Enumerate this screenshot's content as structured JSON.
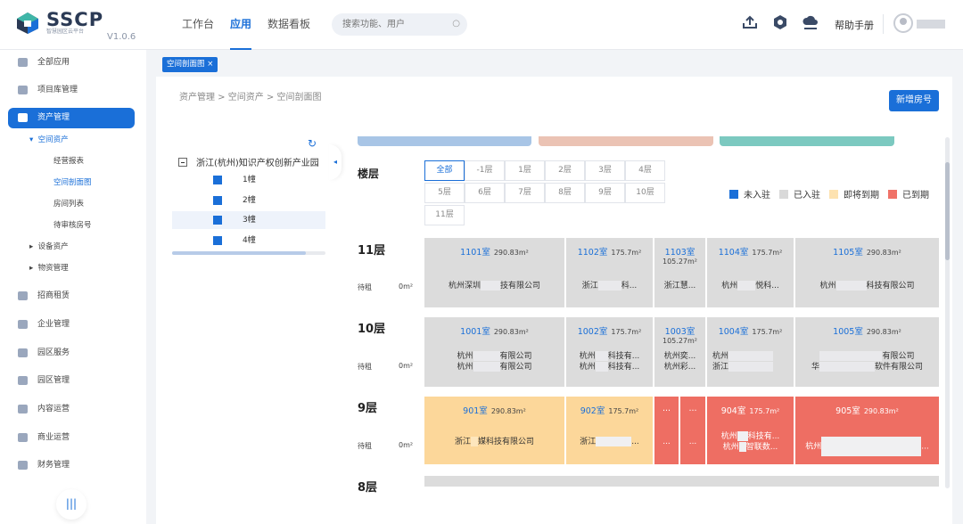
{
  "app": {
    "title": "SSCP",
    "subtitle": "智慧园区云平台",
    "version": "V1.0.6"
  },
  "topnav": [
    {
      "label": "工作台",
      "active": false
    },
    {
      "label": "应用",
      "active": true
    },
    {
      "label": "数据看板",
      "active": false
    }
  ],
  "search": {
    "placeholder": "搜索功能、用户",
    "icon": "search-icon"
  },
  "header": {
    "help": "帮助手册",
    "icons": [
      "upload-icon",
      "settings-icon",
      "download-icon"
    ]
  },
  "sidebar": {
    "items": [
      {
        "label": "全部应用",
        "icon": "apps-icon"
      },
      {
        "label": "项目库管理",
        "icon": "database-icon"
      },
      {
        "label": "资产管理",
        "icon": "layers-icon",
        "active": true
      },
      {
        "label": "招商租赁",
        "icon": "handshake-icon"
      },
      {
        "label": "企业管理",
        "icon": "building-icon"
      },
      {
        "label": "园区服务",
        "icon": "service-icon"
      },
      {
        "label": "园区管理",
        "icon": "park-icon"
      },
      {
        "label": "内容运营",
        "icon": "speaker-icon"
      },
      {
        "label": "商业运营",
        "icon": "shop-icon"
      },
      {
        "label": "财务管理",
        "icon": "finance-icon"
      }
    ],
    "submenu": {
      "space": "空间资产",
      "space_items": [
        "经营报表",
        "空间剖面图",
        "房间列表",
        "待审核房号"
      ],
      "device": "设备资产",
      "material": "物资管理"
    },
    "collapse": "|||"
  },
  "tab": {
    "label": "空间剖面图 ×"
  },
  "breadcrumb": "资产管理 > 空间资产 > 空间剖面图",
  "add_button": "新增房号",
  "tree": {
    "root": "浙江(杭州)知识产权创新产业园",
    "nodes": [
      "1幢",
      "2幢",
      "3幢",
      "4幢"
    ],
    "refresh": "↻",
    "collapse": "◂"
  },
  "floor_filter": {
    "label": "楼层",
    "options": [
      "全部",
      "-1层",
      "1层",
      "2层",
      "3层",
      "4层",
      "5层",
      "6层",
      "7层",
      "8层",
      "9层",
      "10层",
      "11层"
    ]
  },
  "legend": [
    {
      "label": "未入驻",
      "color": "#1a6fd8"
    },
    {
      "label": "已入驻",
      "color": "#d9d9d9"
    },
    {
      "label": "即将到期",
      "color": "#fde2b0"
    },
    {
      "label": "已到期",
      "color": "#f07268"
    }
  ],
  "status_colors": {
    "occupied": "#dcdcdc",
    "expiring": "#fcd79a",
    "expired": "#ee6e63"
  },
  "floors": [
    {
      "name": "11层",
      "pending": "待租",
      "pending_area": "0m²",
      "rooms": [
        {
          "no": "1101室",
          "area": "290.83m²",
          "tenants": [
            "杭州深圳",
            "技有限公司"
          ],
          "status": "occupied"
        },
        {
          "no": "1102室",
          "area": "175.7m²",
          "tenants": [
            "浙江",
            "科..."
          ],
          "status": "occupied"
        },
        {
          "no": "1103室",
          "area": "105.27m²",
          "tenants": [
            "浙江慧..."
          ],
          "status": "occupied"
        },
        {
          "no": "1104室",
          "area": "175.7m²",
          "tenants": [
            "杭州",
            "悦科..."
          ],
          "status": "occupied"
        },
        {
          "no": "1105室",
          "area": "290.83m²",
          "tenants": [
            "杭州",
            "科技有限公司"
          ],
          "status": "occupied"
        }
      ]
    },
    {
      "name": "10层",
      "pending": "待租",
      "pending_area": "0m²",
      "rooms": [
        {
          "no": "1001室",
          "area": "290.83m²",
          "tenants": [
            "杭州",
            "有限公司",
            "杭州",
            "有限公司"
          ],
          "status": "occupied"
        },
        {
          "no": "1002室",
          "area": "175.7m²",
          "tenants": [
            "杭州",
            "科技有...",
            "杭州",
            "科技有..."
          ],
          "status": "occupied"
        },
        {
          "no": "1003室",
          "area": "105.27m²",
          "tenants": [
            "杭州奕...",
            "杭州彩..."
          ],
          "status": "occupied"
        },
        {
          "no": "1004室",
          "area": "175.7m²",
          "tenants": [
            "杭州",
            "浙江"
          ],
          "status": "occupied"
        },
        {
          "no": "1005室",
          "area": "290.83m²",
          "tenants": [
            "有限公司",
            "华",
            "软件有限公司"
          ],
          "status": "occupied"
        }
      ]
    },
    {
      "name": "9层",
      "pending": "待租",
      "pending_area": "0m²",
      "rooms": [
        {
          "no": "901室",
          "area": "290.83m²",
          "tenants": [
            "浙江",
            "媒科技有限公司"
          ],
          "status": "expiring"
        },
        {
          "no": "902室",
          "area": "175.7m²",
          "tenants": [
            "浙江",
            "..."
          ],
          "status": "expiring"
        },
        {
          "no": "...",
          "area": "",
          "tenants": [
            "..."
          ],
          "status": "expired"
        },
        {
          "no": "...",
          "area": "",
          "tenants": [
            "..."
          ],
          "status": "expired"
        },
        {
          "no": "904室",
          "area": "175.7m²",
          "tenants": [
            "杭州",
            "科技有...",
            "杭州",
            "智联数..."
          ],
          "status": "expired"
        },
        {
          "no": "905室",
          "area": "290.83m²",
          "tenants": [
            "杭州",
            "..."
          ],
          "status": "expired"
        }
      ]
    },
    {
      "name": "8层"
    }
  ],
  "strip_colors": [
    "#a8c5e6",
    "#ebc3b4",
    "#7cc9c0"
  ]
}
